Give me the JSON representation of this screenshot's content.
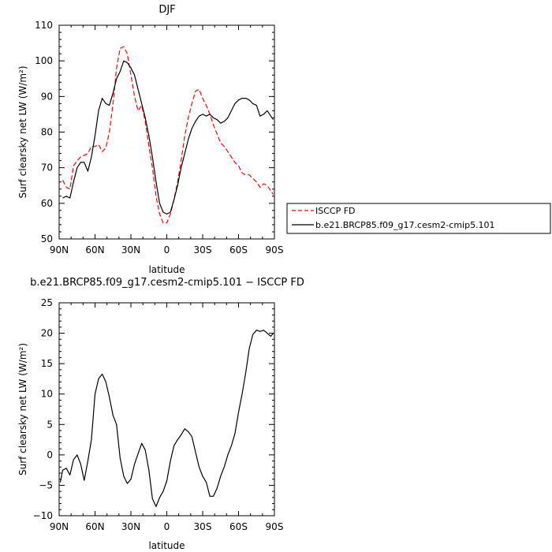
{
  "chart_data": [
    {
      "type": "line",
      "title": "DJF",
      "xlabel": "latitude",
      "ylabel": "Surf clearsky net LW (W/m²)",
      "xlim": [
        90,
        -90
      ],
      "ylim": [
        50,
        110
      ],
      "x_ticks": [
        90,
        60,
        30,
        0,
        -30,
        -60,
        -90
      ],
      "x_tick_labels": [
        "90N",
        "60N",
        "30N",
        "0",
        "30S",
        "60S",
        "90S"
      ],
      "y_ticks": [
        50,
        60,
        70,
        80,
        90,
        100,
        110
      ],
      "y_tick_labels": [
        "50",
        "60",
        "70",
        "80",
        "90",
        "100",
        "110"
      ],
      "legend_position": "right",
      "series": [
        {
          "name": "ISCCP FD",
          "color": "#ff0000",
          "dash": "dashed",
          "x": [
            87,
            84,
            81,
            78,
            75,
            72,
            69,
            66,
            63,
            60,
            57,
            54,
            51,
            48,
            45,
            42,
            39,
            36,
            33,
            30,
            27,
            24,
            21,
            18,
            15,
            12,
            9,
            6,
            3,
            0,
            -3,
            -6,
            -9,
            -12,
            -15,
            -18,
            -21,
            -24,
            -27,
            -30,
            -33,
            -36,
            -39,
            -42,
            -45,
            -48,
            -51,
            -54,
            -57,
            -60,
            -63,
            -66,
            -69,
            -72,
            -75,
            -78,
            -81,
            -84,
            -87,
            -89
          ],
          "y": [
            66.5,
            64.5,
            64,
            70.5,
            72,
            73,
            73.5,
            74,
            76,
            76,
            76.5,
            74.5,
            75.5,
            80,
            88,
            98,
            103.5,
            104,
            102,
            96,
            90,
            86,
            87.5,
            83,
            76,
            70,
            62,
            57,
            54.5,
            54.5,
            57,
            61,
            66,
            72,
            79,
            84,
            88,
            91.5,
            92,
            89.5,
            87.5,
            85,
            82,
            79.5,
            77,
            76,
            74.5,
            73,
            71.5,
            70.5,
            68.5,
            68,
            68,
            67,
            66,
            64.5,
            65.5,
            65,
            63.5,
            62.5
          ]
        },
        {
          "name": "b.e21.BRCP85.f09_g17.cesm2-cmip5.101",
          "color": "#000000",
          "dash": "solid",
          "x": [
            87,
            84,
            81,
            78,
            75,
            72,
            69,
            66,
            63,
            60,
            57,
            54,
            51,
            48,
            45,
            42,
            39,
            36,
            33,
            30,
            27,
            24,
            21,
            18,
            15,
            12,
            9,
            6,
            3,
            0,
            -3,
            -6,
            -9,
            -12,
            -15,
            -18,
            -21,
            -24,
            -27,
            -30,
            -33,
            -36,
            -39,
            -42,
            -45,
            -48,
            -51,
            -54,
            -57,
            -60,
            -63,
            -66,
            -69,
            -72,
            -75,
            -78,
            -81,
            -84,
            -87,
            -89
          ],
          "y": [
            61.5,
            62,
            61.5,
            66,
            70,
            71.5,
            71.5,
            69,
            73,
            79,
            86,
            89.5,
            88,
            87.5,
            91,
            95,
            97,
            100,
            99.5,
            98,
            96,
            92,
            88,
            84,
            79,
            73,
            66,
            60,
            57.5,
            57,
            57.5,
            61,
            65,
            70,
            74,
            78,
            81,
            83,
            84.5,
            85,
            84.5,
            85,
            84,
            83.5,
            82.5,
            83,
            84,
            86,
            88,
            89,
            89.5,
            89.5,
            89,
            88,
            87.5,
            84.5,
            85,
            86,
            84.5,
            83.5
          ]
        }
      ]
    },
    {
      "type": "line",
      "title": "b.e21.BRCP85.f09_g17.cesm2-cmip5.101 − ISCCP FD",
      "xlabel": "latitude",
      "ylabel": "Surf clearsky net LW (W/m²)",
      "xlim": [
        90,
        -90
      ],
      "ylim": [
        -10,
        25
      ],
      "x_ticks": [
        90,
        60,
        30,
        0,
        -30,
        -60,
        -90
      ],
      "x_tick_labels": [
        "90N",
        "60N",
        "30N",
        "0",
        "30S",
        "60S",
        "90S"
      ],
      "y_ticks": [
        -10,
        -5,
        0,
        5,
        10,
        15,
        20,
        25
      ],
      "y_tick_labels": [
        "−10",
        "−5",
        "0",
        "5",
        "10",
        "15",
        "20",
        "25"
      ],
      "series": [
        {
          "color": "#000000",
          "dash": "solid",
          "x": [
            89,
            87,
            84,
            81,
            78,
            75,
            72,
            69,
            66,
            63,
            60,
            57,
            54,
            51,
            48,
            45,
            42,
            39,
            36,
            33,
            30,
            27,
            24,
            21,
            18,
            15,
            12,
            9,
            6,
            3,
            0,
            -3,
            -6,
            -9,
            -12,
            -15,
            -18,
            -21,
            -24,
            -27,
            -30,
            -33,
            -36,
            -39,
            -42,
            -45,
            -48,
            -51,
            -54,
            -57,
            -60,
            -63,
            -66,
            -69,
            -72,
            -75,
            -78,
            -81,
            -84,
            -87,
            -89
          ],
          "y": [
            -4.5,
            -2.5,
            -2.2,
            -3.3,
            -0.8,
            0,
            -1.5,
            -4.2,
            -1,
            2.5,
            10,
            12.5,
            13.3,
            12,
            9.5,
            6.5,
            5,
            -0.5,
            -3.5,
            -4.7,
            -4,
            -1.5,
            0.2,
            1.9,
            0.8,
            -2.5,
            -7.2,
            -8.5,
            -7,
            -6,
            -4.3,
            -1,
            1.5,
            2.5,
            3.3,
            4.3,
            3.8,
            3,
            0.5,
            -2,
            -3.5,
            -4.5,
            -6.8,
            -6.8,
            -5.5,
            -3.5,
            -2,
            0,
            1.5,
            3.5,
            7,
            10,
            13.5,
            17.5,
            19.8,
            20.5,
            20.3,
            20.5,
            20,
            19.5,
            20
          ]
        }
      ]
    }
  ]
}
